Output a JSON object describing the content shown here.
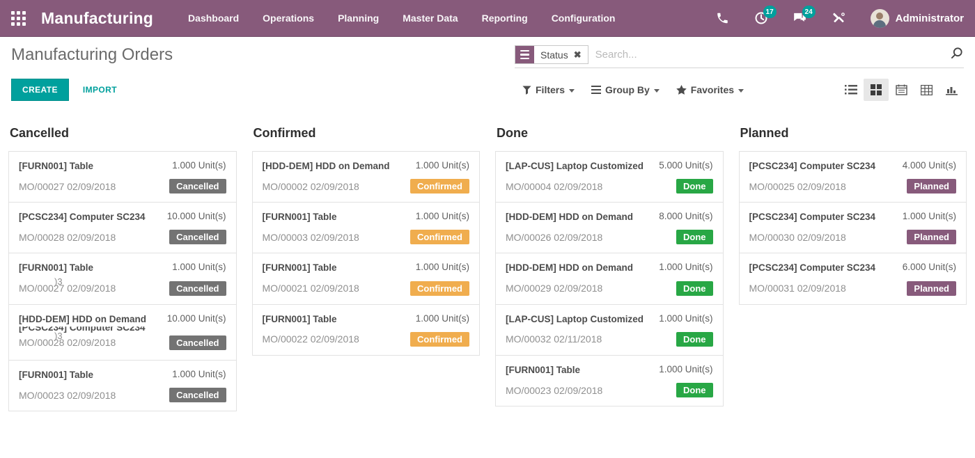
{
  "navbar": {
    "app_name": "Manufacturing",
    "menu": [
      "Dashboard",
      "Operations",
      "Planning",
      "Master Data",
      "Reporting",
      "Configuration"
    ],
    "activity_count": "17",
    "message_count": "24",
    "user": "Administrator"
  },
  "control_panel": {
    "title": "Manufacturing Orders",
    "search": {
      "facet": "Status",
      "placeholder": "Search..."
    },
    "create_label": "CREATE",
    "import_label": "IMPORT",
    "dropdowns": [
      "Filters",
      "Group By",
      "Favorites"
    ]
  },
  "colors": {
    "navbar": "#875A7B",
    "accent_teal": "#00A09D"
  },
  "kanban": {
    "status_colors": {
      "Cancelled": "#737373",
      "Confirmed": "#F0AD4E",
      "Done": "#28A745",
      "Planned": "#875A7B"
    },
    "columns": [
      {
        "title": "Cancelled",
        "cards": [
          {
            "name": "[FURN001] Table",
            "qty": "1.000 Unit(s)",
            "ref": "MO/00027 02/09/2018",
            "status": "Cancelled"
          },
          {
            "name": "[PCSC234] Computer SC234",
            "qty": "10.000 Unit(s)",
            "ref": "MO/00028 02/09/2018",
            "status": "Cancelled"
          },
          {
            "name": "[FURN001] Table",
            "qty": "1.000 Unit(s)",
            "ref": "MO/00027 02/09/2018",
            "ghost_ref": ")3",
            "status": "Cancelled"
          },
          {
            "name": "[HDD-DEM] HDD on Demand",
            "ghost_name": "[PCSC234] Computer SC234",
            "qty": "10.000 Unit(s)",
            "ref": "MO/00028 02/09/2018",
            "ghost_ref": ")3",
            "status": "Cancelled"
          },
          {
            "name": "[FURN001] Table",
            "qty": "1.000 Unit(s)",
            "ref": "MO/00023 02/09/2018",
            "status": "Cancelled"
          }
        ]
      },
      {
        "title": "Confirmed",
        "cards": [
          {
            "name": "[HDD-DEM] HDD on Demand",
            "qty": "1.000 Unit(s)",
            "ref": "MO/00002 02/09/2018",
            "status": "Confirmed"
          },
          {
            "name": "[FURN001] Table",
            "qty": "1.000 Unit(s)",
            "ref": "MO/00003 02/09/2018",
            "status": "Confirmed"
          },
          {
            "name": "[FURN001] Table",
            "qty": "1.000 Unit(s)",
            "ref": "MO/00021 02/09/2018",
            "status": "Confirmed"
          },
          {
            "name": "[FURN001] Table",
            "qty": "1.000 Unit(s)",
            "ref": "MO/00022 02/09/2018",
            "status": "Confirmed"
          }
        ]
      },
      {
        "title": "Done",
        "cards": [
          {
            "name": "[LAP-CUS] Laptop Customized",
            "qty": "5.000 Unit(s)",
            "ref": "MO/00004 02/09/2018",
            "status": "Done"
          },
          {
            "name": "[HDD-DEM] HDD on Demand",
            "qty": "8.000 Unit(s)",
            "ref": "MO/00026 02/09/2018",
            "status": "Done"
          },
          {
            "name": "[HDD-DEM] HDD on Demand",
            "qty": "1.000 Unit(s)",
            "ref": "MO/00029 02/09/2018",
            "status": "Done"
          },
          {
            "name": "[LAP-CUS] Laptop Customized",
            "qty": "1.000 Unit(s)",
            "ref": "MO/00032 02/11/2018",
            "status": "Done"
          },
          {
            "name": "[FURN001] Table",
            "qty": "1.000 Unit(s)",
            "ref": "MO/00023 02/09/2018",
            "status": "Done"
          }
        ]
      },
      {
        "title": "Planned",
        "cards": [
          {
            "name": "[PCSC234] Computer SC234",
            "qty": "4.000 Unit(s)",
            "ref": "MO/00025 02/09/2018",
            "status": "Planned"
          },
          {
            "name": "[PCSC234] Computer SC234",
            "qty": "1.000 Unit(s)",
            "ref": "MO/00030 02/09/2018",
            "status": "Planned"
          },
          {
            "name": "[PCSC234] Computer SC234",
            "qty": "6.000 Unit(s)",
            "ref": "MO/00031 02/09/2018",
            "status": "Planned"
          }
        ]
      }
    ]
  }
}
